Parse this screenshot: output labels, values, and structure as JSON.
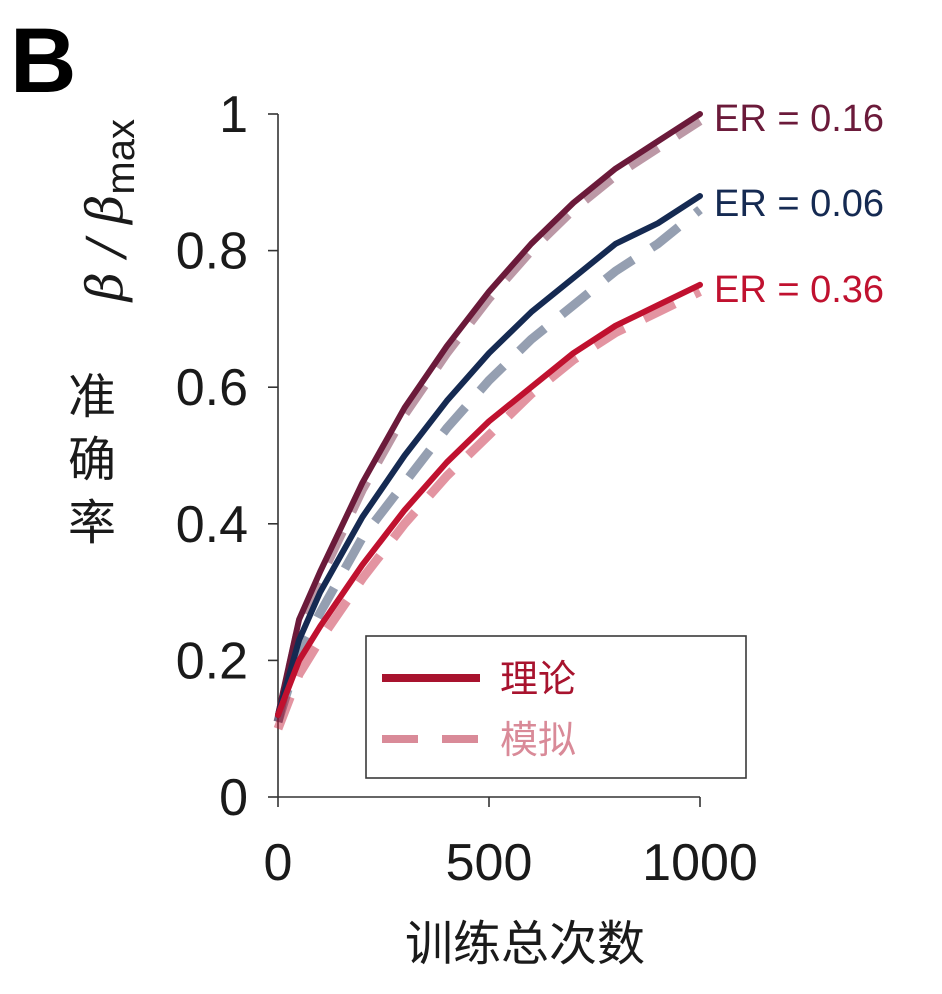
{
  "panel_label": "B",
  "chart_data": {
    "type": "line",
    "xlabel": "训练总次数",
    "ylabel_chars": [
      "准",
      "确",
      "率"
    ],
    "ylabel_math": {
      "base": "β / β",
      "subscript": "max"
    },
    "x_ticks": [
      0,
      500,
      1000
    ],
    "y_ticks": [
      0,
      0.2,
      0.4,
      0.6,
      0.8,
      1
    ],
    "y_tick_labels": [
      "0",
      "0.2",
      "0.4",
      "0.6",
      "0.8",
      "1"
    ],
    "x_tick_labels": [
      "0",
      "500",
      "1000"
    ],
    "xlim": [
      0,
      1000
    ],
    "ylim": [
      0,
      1
    ],
    "grid": false,
    "x": [
      0,
      50,
      100,
      200,
      300,
      400,
      500,
      600,
      700,
      800,
      900,
      1000
    ],
    "series": [
      {
        "name": "ER = 0.16",
        "color": "#6b1a3a",
        "theory": [
          0.12,
          0.26,
          0.33,
          0.46,
          0.57,
          0.66,
          0.74,
          0.81,
          0.87,
          0.92,
          0.96,
          1.0
        ],
        "simulation": [
          0.11,
          0.25,
          0.32,
          0.45,
          0.56,
          0.65,
          0.73,
          0.8,
          0.86,
          0.91,
          0.95,
          0.99
        ]
      },
      {
        "name": "ER = 0.06",
        "color": "#152a52",
        "theory": [
          0.12,
          0.23,
          0.3,
          0.41,
          0.5,
          0.58,
          0.65,
          0.71,
          0.76,
          0.81,
          0.84,
          0.88
        ],
        "simulation": [
          0.11,
          0.21,
          0.27,
          0.38,
          0.46,
          0.54,
          0.61,
          0.67,
          0.72,
          0.77,
          0.81,
          0.86
        ]
      },
      {
        "name": "ER = 0.36",
        "color": "#c0112f",
        "theory": [
          0.12,
          0.2,
          0.25,
          0.34,
          0.42,
          0.49,
          0.55,
          0.6,
          0.65,
          0.69,
          0.72,
          0.75
        ],
        "simulation": [
          0.1,
          0.18,
          0.23,
          0.32,
          0.4,
          0.47,
          0.53,
          0.59,
          0.64,
          0.68,
          0.71,
          0.74
        ]
      }
    ],
    "legend": {
      "placement": "bottom-right",
      "entries": [
        {
          "label": "理论",
          "style": "solid",
          "color": "#a8132e"
        },
        {
          "label": "模拟",
          "style": "dashed",
          "color": "#d98a98"
        }
      ]
    }
  }
}
